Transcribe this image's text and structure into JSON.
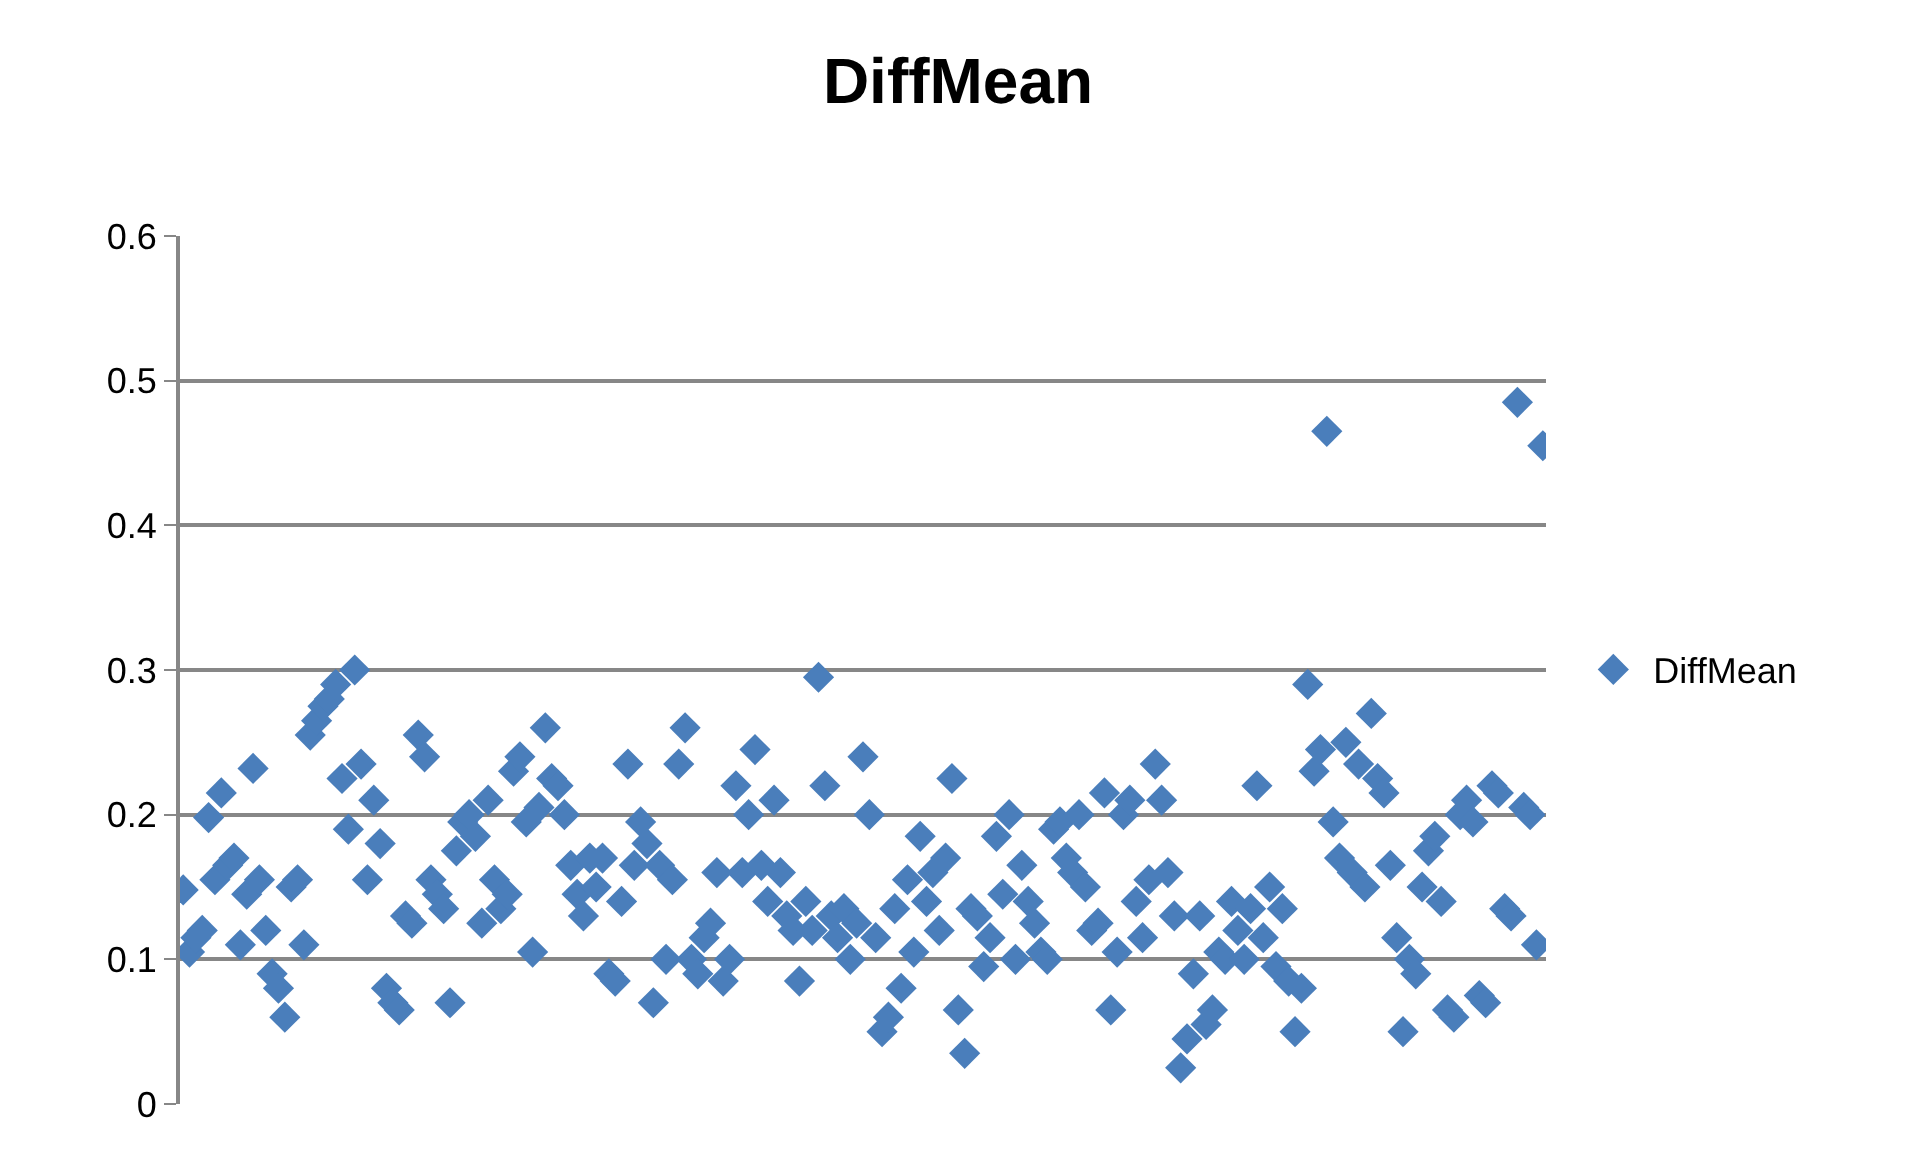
{
  "chart_data": {
    "type": "scatter",
    "title": "DiffMean",
    "categories": [
      null,
      null,
      null,
      null,
      null,
      null,
      null,
      null,
      null,
      null,
      null,
      null,
      null,
      null,
      null,
      null,
      null,
      null,
      null,
      null,
      null,
      null,
      null,
      null,
      null,
      null,
      null,
      null,
      null,
      null,
      null,
      null,
      null,
      null,
      null,
      null,
      null,
      null,
      null,
      null,
      null,
      null,
      null,
      null,
      null,
      null,
      null,
      null,
      null,
      null,
      null,
      null,
      null,
      null,
      null,
      null,
      null,
      null,
      null,
      null,
      null,
      null,
      null,
      null,
      null,
      null,
      null,
      null,
      null,
      null,
      null,
      null,
      null,
      null,
      null,
      null,
      null,
      null,
      null,
      null,
      null,
      null,
      null,
      null,
      null,
      null,
      null,
      null,
      null,
      null,
      null,
      null,
      null,
      null,
      null,
      null,
      null,
      null,
      null,
      null,
      null,
      null,
      null,
      null,
      null,
      null,
      null,
      null,
      null,
      null,
      null,
      null,
      null,
      null,
      null,
      null,
      null,
      null,
      null,
      null,
      null,
      null,
      null,
      null,
      null,
      null,
      null,
      null,
      null,
      null,
      null,
      null,
      null,
      null,
      null,
      null,
      null,
      null,
      null,
      null,
      null,
      null,
      null,
      null,
      null,
      null,
      null,
      null,
      null,
      null,
      null,
      null,
      null,
      null,
      null,
      null,
      null,
      null,
      null,
      null,
      null,
      null,
      null,
      null,
      null,
      null,
      null,
      null,
      null,
      null,
      null,
      null,
      null,
      null,
      null,
      null,
      null,
      null,
      null,
      null,
      null,
      null,
      null,
      null,
      null,
      null,
      null,
      null,
      null,
      null,
      null,
      null,
      null,
      null,
      null,
      null,
      null,
      null,
      null,
      null,
      null,
      null,
      null,
      null,
      null,
      null,
      null,
      null,
      null,
      null,
      null,
      null,
      null,
      null,
      null
    ],
    "series": [
      {
        "name": "DiffMean",
        "color": "#4a7ebb",
        "values": [
          0.148,
          0.105,
          0.115,
          0.12,
          0.198,
          0.155,
          0.215,
          0.165,
          0.17,
          0.11,
          0.145,
          0.232,
          0.155,
          0.12,
          0.09,
          0.08,
          0.06,
          0.15,
          0.155,
          0.11,
          0.255,
          0.265,
          0.275,
          0.28,
          0.29,
          0.225,
          0.19,
          0.3,
          0.235,
          0.155,
          0.21,
          0.18,
          0.08,
          0.07,
          0.065,
          0.13,
          0.125,
          0.255,
          0.24,
          0.155,
          0.145,
          0.135,
          0.07,
          0.175,
          0.195,
          0.2,
          0.185,
          0.125,
          0.21,
          0.155,
          0.135,
          0.145,
          0.23,
          0.24,
          0.195,
          0.105,
          0.205,
          0.26,
          0.225,
          0.22,
          0.2,
          0.165,
          0.145,
          0.13,
          0.17,
          0.15,
          0.17,
          0.09,
          0.085,
          0.14,
          0.235,
          0.165,
          0.195,
          0.18,
          0.07,
          0.165,
          0.1,
          0.155,
          0.235,
          0.26,
          0.1,
          0.09,
          0.115,
          0.125,
          0.16,
          0.085,
          0.1,
          0.22,
          0.16,
          0.2,
          0.245,
          0.165,
          0.14,
          0.21,
          0.16,
          0.13,
          0.12,
          0.085,
          0.14,
          0.12,
          0.295,
          0.22,
          0.13,
          0.115,
          0.135,
          0.1,
          0.125,
          0.24,
          0.2,
          0.115,
          0.05,
          0.06,
          0.135,
          0.08,
          0.155,
          0.105,
          0.185,
          0.14,
          0.16,
          0.12,
          0.17,
          0.225,
          0.065,
          0.035,
          0.135,
          0.13,
          0.095,
          0.115,
          0.185,
          0.145,
          0.2,
          0.1,
          0.165,
          0.14,
          0.125,
          0.105,
          0.1,
          0.19,
          0.195,
          0.17,
          0.16,
          0.2,
          0.15,
          0.12,
          0.125,
          0.215,
          0.065,
          0.105,
          0.2,
          0.21,
          0.14,
          0.115,
          0.155,
          0.235,
          0.21,
          0.16,
          0.13,
          0.025,
          0.045,
          0.09,
          0.13,
          0.055,
          0.065,
          0.105,
          0.1,
          0.14,
          0.12,
          0.1,
          0.135,
          0.22,
          0.115,
          0.15,
          0.095,
          0.135,
          0.085,
          0.05,
          0.08,
          0.29,
          0.23,
          0.245,
          0.465,
          0.195,
          0.17,
          0.25,
          0.16,
          0.235,
          0.15,
          0.27,
          0.225,
          0.215,
          0.165,
          0.115,
          0.05,
          0.1,
          0.09,
          0.15,
          0.175,
          0.185,
          0.14,
          0.065,
          0.06,
          0.2,
          0.21,
          0.195,
          0.075,
          0.07,
          0.22,
          0.215,
          0.135,
          0.13,
          0.485,
          0.205,
          0.2,
          0.11,
          0.455
        ]
      }
    ],
    "marker": "diamond",
    "ylim": [
      0,
      0.6
    ],
    "yticks": [
      0,
      0.1,
      0.2,
      0.3,
      0.4,
      0.5,
      0.6
    ],
    "tick_labels": "y",
    "grid": "y",
    "legend": "right"
  }
}
